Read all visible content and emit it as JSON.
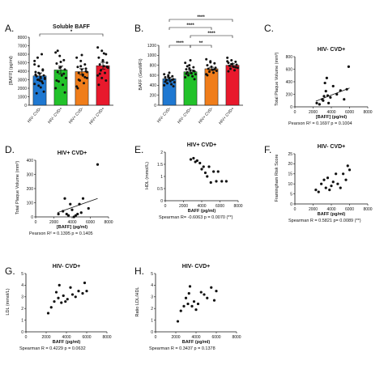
{
  "colors": {
    "hiv_neg_cvd_neg": "#1f78d1",
    "hiv_neg_cvd_pos": "#22c22a",
    "hiv_pos_cvd_neg": "#f07d1a",
    "hiv_pos_cvd_pos": "#e8192c",
    "point": "#111111"
  },
  "chart_data": [
    {
      "id": "A",
      "type": "bar",
      "label": "A.",
      "title": "Soluble BAFF",
      "ylabel": "[BAFF] (pg/ml)",
      "xlabel": "",
      "ylim": [
        0,
        8000
      ],
      "yticks": [
        0,
        1000,
        2000,
        3000,
        4000,
        5000,
        6000,
        7000,
        8000
      ],
      "categories": [
        "HIV- CVD-",
        "HIV- CVD+",
        "HIV+ CVD-",
        "HIV+ CVD+"
      ],
      "values": [
        3450,
        4150,
        3950,
        4650
      ],
      "errors": [
        350,
        450,
        350,
        400
      ],
      "significance": [
        {
          "from": 0,
          "to": 3,
          "label": "*"
        }
      ],
      "points": [
        [
          5200,
          4600,
          4200,
          3900,
          3700,
          3500,
          3400,
          3300,
          3200,
          3000,
          2800,
          2500,
          2300,
          4100,
          3600,
          2900,
          1600,
          1400,
          2100,
          3100,
          5600,
          6000,
          4800,
          3800,
          2600
        ],
        [
          6200,
          5800,
          5300,
          4900,
          4500,
          4200,
          3900,
          3500,
          3200,
          2800,
          2400,
          2000,
          4400,
          3700,
          2900,
          5100,
          1500,
          6400
        ],
        [
          5600,
          5200,
          4800,
          4500,
          4200,
          4000,
          3800,
          3500,
          3200,
          2900,
          2600,
          2200,
          4600,
          3300,
          2000,
          5900,
          4300,
          3000,
          3600,
          3900
        ],
        [
          6800,
          6400,
          6000,
          5600,
          5300,
          5000,
          4800,
          4600,
          4400,
          4100,
          3800,
          3500,
          3200,
          2900,
          2400,
          5200,
          4500,
          3700,
          6100
        ]
      ]
    },
    {
      "id": "B",
      "type": "bar",
      "label": "B.",
      "title": "",
      "ylabel": "BAFF (GeoMFI)",
      "xlabel": "",
      "ylim": [
        0,
        1200
      ],
      "yticks": [
        0,
        200,
        400,
        600,
        800,
        1000,
        1200
      ],
      "categories": [
        "HIV- CVD-",
        "HIV- CVD+",
        "HIV+ CVD-",
        "HIV+ CVD+"
      ],
      "values": [
        530,
        670,
        730,
        800
      ],
      "errors": [
        30,
        35,
        30,
        30
      ],
      "significance": [
        {
          "from": 0,
          "to": 3,
          "label": "****"
        },
        {
          "from": 0,
          "to": 2,
          "label": "****"
        },
        {
          "from": 1,
          "to": 3,
          "label": "****"
        },
        {
          "from": 0,
          "to": 1,
          "label": "****"
        },
        {
          "from": 1,
          "to": 2,
          "label": "**"
        }
      ],
      "points": [
        [
          620,
          600,
          580,
          560,
          540,
          520,
          500,
          480,
          460,
          440,
          420,
          400,
          570,
          510,
          470,
          650,
          380
        ],
        [
          850,
          800,
          760,
          720,
          700,
          680,
          660,
          640,
          620,
          600,
          580,
          560,
          740,
          690,
          630,
          900,
          520,
          780
        ],
        [
          920,
          880,
          840,
          800,
          770,
          750,
          730,
          710,
          690,
          670,
          650,
          620,
          860,
          720,
          600
        ],
        [
          950,
          900,
          870,
          850,
          830,
          810,
          790,
          770,
          750,
          730,
          700,
          880,
          820,
          760,
          680
        ]
      ]
    },
    {
      "id": "C",
      "type": "scatter",
      "label": "C.",
      "title": "HIV- CVD+",
      "ylabel": "Total Plaque Volume (mm³)",
      "xlabel": "[BAFF] (pg/ml)",
      "xlim": [
        0,
        8000
      ],
      "ylim": [
        0,
        800
      ],
      "xticks": [
        0,
        2000,
        4000,
        6000,
        8000
      ],
      "yticks": [
        0,
        200,
        400,
        600,
        800
      ],
      "stats": "Pearson R² = 0.1697    p = 0.1004",
      "trend": [
        [
          2300,
          90
        ],
        [
          6000,
          300
        ]
      ],
      "points": [
        [
          2400,
          60
        ],
        [
          2700,
          40
        ],
        [
          3000,
          120
        ],
        [
          3100,
          100
        ],
        [
          3200,
          170
        ],
        [
          3300,
          380
        ],
        [
          3400,
          250
        ],
        [
          3500,
          460
        ],
        [
          3600,
          180
        ],
        [
          3700,
          60
        ],
        [
          3900,
          150
        ],
        [
          4200,
          330
        ],
        [
          4600,
          200
        ],
        [
          5000,
          260
        ],
        [
          5400,
          120
        ],
        [
          5700,
          280
        ],
        [
          5900,
          640
        ]
      ]
    },
    {
      "id": "D",
      "type": "scatter",
      "label": "D.",
      "title": "HIV+ CVD+",
      "ylabel": "Total Plaque Volume (mm³)",
      "xlabel": "[BAFF] (pg/ml)",
      "xlim": [
        0,
        8000
      ],
      "ylim": [
        0,
        400
      ],
      "xticks": [
        0,
        2000,
        4000,
        6000,
        8000
      ],
      "yticks": [
        0,
        100,
        200,
        300,
        400
      ],
      "stats": "Pearson R² = 0.1395    p = 0.1405",
      "trend": [
        [
          2400,
          30
        ],
        [
          6800,
          130
        ]
      ],
      "points": [
        [
          2500,
          20
        ],
        [
          3000,
          40
        ],
        [
          3200,
          130
        ],
        [
          3400,
          20
        ],
        [
          3600,
          10
        ],
        [
          3800,
          90
        ],
        [
          4000,
          50
        ],
        [
          4200,
          0
        ],
        [
          4400,
          10
        ],
        [
          4600,
          20
        ],
        [
          4800,
          90
        ],
        [
          5000,
          30
        ],
        [
          5200,
          130
        ],
        [
          5800,
          60
        ],
        [
          6800,
          370
        ]
      ]
    },
    {
      "id": "E",
      "type": "scatter",
      "label": "E.",
      "title": "HIV+ CVD+",
      "ylabel": "HDL (mmol/L)",
      "xlabel": "BAFF (pg/ml)",
      "xlim": [
        0,
        8000
      ],
      "ylim": [
        0,
        2.0
      ],
      "xticks": [
        0,
        2000,
        4000,
        6000,
        8000
      ],
      "yticks": [
        0.0,
        0.5,
        1.0,
        1.5,
        2.0
      ],
      "stats": "Spearman R= -0.6063    p = 0.0070 (**)",
      "points": [
        [
          2800,
          1.7
        ],
        [
          3100,
          1.75
        ],
        [
          3300,
          1.6
        ],
        [
          3500,
          1.65
        ],
        [
          3800,
          1.55
        ],
        [
          4000,
          1.3
        ],
        [
          4200,
          1.4
        ],
        [
          4400,
          1.15
        ],
        [
          4600,
          1.0
        ],
        [
          4800,
          1.4
        ],
        [
          5000,
          0.75
        ],
        [
          5300,
          1.2
        ],
        [
          5600,
          0.8
        ],
        [
          5800,
          1.2
        ],
        [
          6200,
          0.8
        ],
        [
          6700,
          0.8
        ]
      ]
    },
    {
      "id": "F",
      "type": "scatter",
      "label": "F.",
      "title": "HIV- CVD+",
      "ylabel": "Framingham Risk Score",
      "xlabel": "BAFF (pg/ml)",
      "xlim": [
        0,
        8000
      ],
      "ylim": [
        0,
        25
      ],
      "xticks": [
        0,
        2000,
        4000,
        6000,
        8000
      ],
      "yticks": [
        0,
        5,
        10,
        15,
        20,
        25
      ],
      "stats": "Spearman R = 0.5821    p= 0.0089 (**)",
      "points": [
        [
          2300,
          7
        ],
        [
          2600,
          6
        ],
        [
          2900,
          10
        ],
        [
          3200,
          12
        ],
        [
          3400,
          8
        ],
        [
          3600,
          13
        ],
        [
          3800,
          7
        ],
        [
          4000,
          9
        ],
        [
          4200,
          11
        ],
        [
          4500,
          15
        ],
        [
          4700,
          10
        ],
        [
          5000,
          8
        ],
        [
          5300,
          15
        ],
        [
          5600,
          12
        ],
        [
          5800,
          19
        ],
        [
          6000,
          17
        ]
      ]
    },
    {
      "id": "G",
      "type": "scatter",
      "label": "G.",
      "title": "HIV- CVD+",
      "ylabel": "LDL (mmol/L)",
      "xlabel": "BAFF (pg/ml)",
      "xlim": [
        0,
        8000
      ],
      "ylim": [
        0,
        5
      ],
      "xticks": [
        0,
        2000,
        4000,
        6000,
        8000
      ],
      "yticks": [
        0,
        1,
        2,
        3,
        4,
        5
      ],
      "stats": "Spearman R = 0.4229    p = 0.0632",
      "points": [
        [
          2200,
          1.6
        ],
        [
          2500,
          2.1
        ],
        [
          2800,
          2.6
        ],
        [
          3000,
          3.4
        ],
        [
          3200,
          2.9
        ],
        [
          3300,
          4.0
        ],
        [
          3500,
          2.5
        ],
        [
          3700,
          3.1
        ],
        [
          3900,
          2.6
        ],
        [
          4100,
          2.8
        ],
        [
          4400,
          3.8
        ],
        [
          4600,
          3.2
        ],
        [
          4900,
          3.0
        ],
        [
          5200,
          3.5
        ],
        [
          5600,
          3.3
        ],
        [
          5800,
          4.2
        ],
        [
          6000,
          3.5
        ]
      ]
    },
    {
      "id": "H",
      "type": "scatter",
      "label": "H.",
      "title": "HIV- CVD+",
      "ylabel": "Ratio LDL/HDL",
      "xlabel": "BAFF (pg/ml)",
      "xlim": [
        0,
        8000
      ],
      "ylim": [
        0,
        5
      ],
      "xticks": [
        0,
        2000,
        4000,
        6000,
        8000
      ],
      "yticks": [
        0,
        1,
        2,
        3,
        4,
        5
      ],
      "stats": "Spearman R = 0.3437    p = 0.1378",
      "points": [
        [
          2200,
          0.9
        ],
        [
          2500,
          1.8
        ],
        [
          2800,
          2.2
        ],
        [
          3000,
          2.9
        ],
        [
          3200,
          2.4
        ],
        [
          3300,
          3.3
        ],
        [
          3400,
          3.9
        ],
        [
          3600,
          2.2
        ],
        [
          3800,
          2.6
        ],
        [
          4000,
          1.9
        ],
        [
          4200,
          2.4
        ],
        [
          4500,
          3.4
        ],
        [
          4800,
          3.2
        ],
        [
          5100,
          2.9
        ],
        [
          5500,
          3.8
        ],
        [
          5800,
          2.7
        ],
        [
          6000,
          3.5
        ]
      ]
    }
  ]
}
